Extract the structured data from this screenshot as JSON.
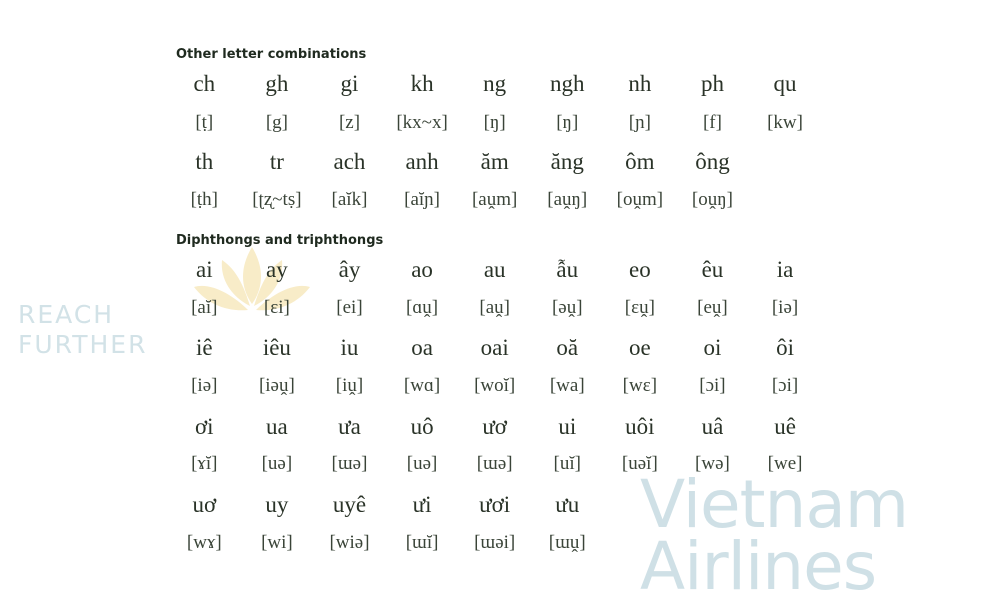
{
  "watermark": {
    "brand": "Vietnam Airlines",
    "tagline": "REACH FURTHER"
  },
  "sections": [
    {
      "title": "Other letter combinations",
      "rows": [
        {
          "words": [
            "ch",
            "gh",
            "gi",
            "kh",
            "ng",
            "ngh",
            "nh",
            "ph",
            "qu"
          ],
          "ipa": [
            "[ṭ]",
            "[g]",
            "[z]",
            "[kx~x]",
            "[ŋ]",
            "[ŋ]",
            "[ɲ]",
            "[f]",
            "[kw]"
          ]
        },
        {
          "words": [
            "th",
            "tr",
            "ach",
            "anh",
            "ăm",
            "ăng",
            "ôm",
            "ông"
          ],
          "ipa": [
            "[ṭh]",
            "[ʈʐ~tṣ]",
            "[aĭk]",
            "[aĭɲ]",
            "[aṷm]",
            "[aṷŋ]",
            "[oṷm]",
            "[oṷŋ]"
          ]
        }
      ]
    },
    {
      "title": "Diphthongs and triphthongs",
      "rows": [
        {
          "words": [
            "ai",
            "ay",
            "ây",
            "ao",
            "au",
            "ẫu",
            "eo",
            "êu",
            "ia"
          ],
          "ipa": [
            "[aĭ]",
            "[ɛi]",
            "[ei]",
            "[ɑṷ]",
            "[aṷ]",
            "[əṷ]",
            "[ɛṷ]",
            "[eṷ]",
            "[iə]"
          ]
        },
        {
          "words": [
            "iê",
            "iêu",
            "iu",
            "oa",
            "oai",
            "oă",
            "oe",
            "oi",
            "ôi"
          ],
          "ipa": [
            "[iə]",
            "[iəṷ]",
            "[iṷ]",
            "[wɑ]",
            "[woĭ]",
            "[wa]",
            "[wɛ]",
            "[ɔi]",
            "[ɔi]"
          ]
        },
        {
          "words": [
            "ơi",
            "ua",
            "ưa",
            "uô",
            "ươ",
            "ui",
            "uôi",
            "uâ",
            "uê"
          ],
          "ipa": [
            "[ɤĭ]",
            "[uə]",
            "[ɯə]",
            "[uə]",
            "[ɯə]",
            "[uĭ]",
            "[uəĭ]",
            "[wə]",
            "[we]"
          ]
        },
        {
          "words": [
            "uơ",
            "uy",
            "uyê",
            "ưi",
            "ươi",
            "ưu"
          ],
          "ipa": [
            "[wɤ]",
            "[wi]",
            "[wiə]",
            "[ɯĭ]",
            "[ɯəi]",
            "[ɯṷ]"
          ]
        }
      ]
    }
  ]
}
